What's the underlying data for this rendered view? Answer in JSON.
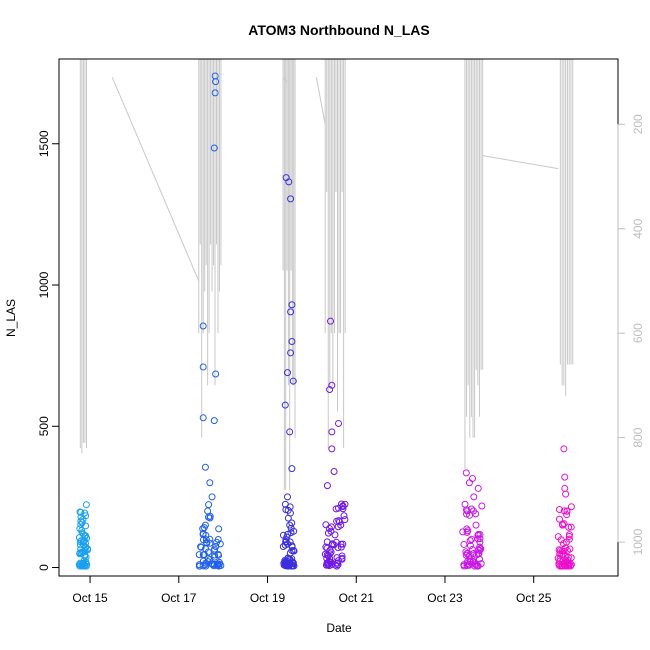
{
  "chart_data": {
    "type": "scatter",
    "title": "ATOM3 Northbound N_LAS",
    "xlabel": "Date",
    "ylabel": "N_LAS",
    "x_ticks": [
      "Oct 15",
      "Oct 17",
      "Oct 19",
      "Oct 21",
      "Oct 23",
      "Oct 25"
    ],
    "x_range_days": [
      "Oct 14 (approx. 14.3)",
      "Oct 26 (approx. 26.9)"
    ],
    "ylim": [
      -30,
      1800
    ],
    "y_ticks": [
      0,
      500,
      1000,
      1500
    ],
    "y2_ticks": [
      200,
      400,
      600,
      800,
      1000
    ],
    "y2lim": [
      1065,
      75
    ],
    "y2_reversed": true,
    "legend": "none",
    "grid": false,
    "series": [
      {
        "color": "#18a0f0",
        "x_range": [
          "Oct 14.75",
          "Oct 14.95"
        ],
        "values": [
          {
            "x": 14.82,
            "y": 123
          },
          {
            "x": 14.8,
            "y": 95
          },
          {
            "x": 14.85,
            "y": 90
          },
          {
            "x": 14.78,
            "y": 80
          },
          {
            "x": 14.9,
            "y": 70
          },
          {
            "x": 14.83,
            "y": 55
          },
          {
            "x": 14.88,
            "y": 40
          },
          {
            "x": 14.86,
            "y": 10
          }
        ]
      },
      {
        "color": "#2060f0",
        "x_range": [
          "Oct 17.45",
          "Oct 17.95"
        ],
        "values": [
          {
            "x": 17.82,
            "y": 1740
          },
          {
            "x": 17.83,
            "y": 1720
          },
          {
            "x": 17.82,
            "y": 1680
          },
          {
            "x": 17.8,
            "y": 1485
          },
          {
            "x": 17.55,
            "y": 855
          },
          {
            "x": 17.55,
            "y": 710
          },
          {
            "x": 17.83,
            "y": 685
          },
          {
            "x": 17.55,
            "y": 530
          },
          {
            "x": 17.8,
            "y": 520
          },
          {
            "x": 17.6,
            "y": 355
          },
          {
            "x": 17.7,
            "y": 300
          },
          {
            "x": 17.75,
            "y": 250
          },
          {
            "x": 17.65,
            "y": 200
          },
          {
            "x": 17.6,
            "y": 150
          },
          {
            "x": 17.7,
            "y": 100
          },
          {
            "x": 17.8,
            "y": 60
          },
          {
            "x": 17.6,
            "y": 10
          }
        ]
      },
      {
        "color": "#3a30e0",
        "x_range": [
          "Oct 19.35",
          "Oct 19.6"
        ],
        "values": [
          {
            "x": 19.42,
            "y": 1380
          },
          {
            "x": 19.48,
            "y": 1365
          },
          {
            "x": 19.52,
            "y": 1305
          },
          {
            "x": 19.55,
            "y": 930
          },
          {
            "x": 19.52,
            "y": 905
          },
          {
            "x": 19.55,
            "y": 800
          },
          {
            "x": 19.52,
            "y": 760
          },
          {
            "x": 19.45,
            "y": 690
          },
          {
            "x": 19.58,
            "y": 660
          },
          {
            "x": 19.4,
            "y": 575
          },
          {
            "x": 19.5,
            "y": 480
          },
          {
            "x": 19.55,
            "y": 350
          },
          {
            "x": 19.45,
            "y": 250
          },
          {
            "x": 19.5,
            "y": 150
          },
          {
            "x": 19.55,
            "y": 60
          },
          {
            "x": 19.5,
            "y": 15
          }
        ]
      },
      {
        "color": "#7018e8",
        "x_range": [
          "Oct 20.3",
          "Oct 20.75"
        ],
        "values": [
          {
            "x": 20.42,
            "y": 872
          },
          {
            "x": 20.45,
            "y": 645
          },
          {
            "x": 20.4,
            "y": 630
          },
          {
            "x": 20.6,
            "y": 510
          },
          {
            "x": 20.45,
            "y": 480
          },
          {
            "x": 20.45,
            "y": 420
          },
          {
            "x": 20.5,
            "y": 340
          },
          {
            "x": 20.35,
            "y": 290
          },
          {
            "x": 20.6,
            "y": 210
          },
          {
            "x": 20.65,
            "y": 150
          },
          {
            "x": 20.5,
            "y": 80
          },
          {
            "x": 20.4,
            "y": 20
          }
        ]
      },
      {
        "color": "#c818e8",
        "x_range": [
          "Oct 23.4",
          "Oct 23.85"
        ],
        "values": [
          {
            "x": 23.48,
            "y": 335
          },
          {
            "x": 23.62,
            "y": 315
          },
          {
            "x": 23.55,
            "y": 300
          },
          {
            "x": 23.75,
            "y": 280
          },
          {
            "x": 23.65,
            "y": 250
          },
          {
            "x": 23.5,
            "y": 200
          },
          {
            "x": 23.7,
            "y": 150
          },
          {
            "x": 23.6,
            "y": 100
          },
          {
            "x": 23.5,
            "y": 50
          },
          {
            "x": 23.7,
            "y": 10
          }
        ]
      },
      {
        "color": "#ee10cc",
        "x_range": [
          "Oct 25.55",
          "Oct 25.85"
        ],
        "values": [
          {
            "x": 25.68,
            "y": 420
          },
          {
            "x": 25.7,
            "y": 320
          },
          {
            "x": 25.7,
            "y": 280
          },
          {
            "x": 25.72,
            "y": 260
          },
          {
            "x": 25.75,
            "y": 200
          },
          {
            "x": 25.65,
            "y": 150
          },
          {
            "x": 25.8,
            "y": 110
          },
          {
            "x": 25.6,
            "y": 60
          },
          {
            "x": 25.75,
            "y": 20
          }
        ]
      }
    ]
  }
}
